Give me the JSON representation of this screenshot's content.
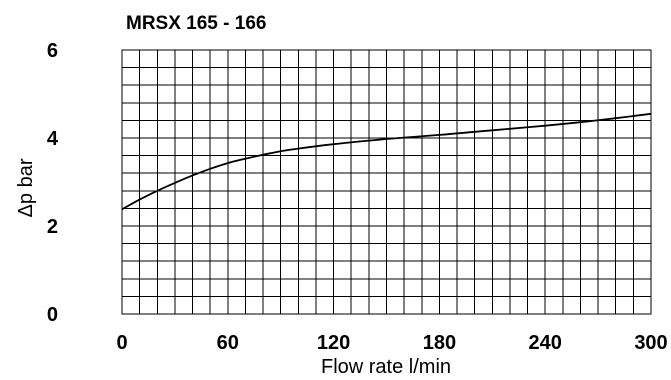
{
  "chart_data": {
    "type": "line",
    "title": "MRSX 165 - 166",
    "xlabel": "Flow rate l/min",
    "ylabel": "Δp bar",
    "xlim": [
      0,
      300
    ],
    "ylim": [
      0,
      6
    ],
    "x_ticks": [
      "0",
      "60",
      "120",
      "180",
      "240",
      "300"
    ],
    "y_ticks": [
      "0",
      "2",
      "4",
      "6"
    ],
    "grid": true,
    "series": [
      {
        "x": [
          0,
          10,
          20,
          30,
          40,
          50,
          60,
          70,
          80,
          90,
          100,
          120,
          140,
          160,
          180,
          200,
          220,
          240,
          260,
          280,
          300
        ],
        "y": [
          2.38,
          2.6,
          2.8,
          2.98,
          3.15,
          3.3,
          3.43,
          3.53,
          3.62,
          3.7,
          3.76,
          3.86,
          3.94,
          4.01,
          4.07,
          4.14,
          4.21,
          4.28,
          4.36,
          4.45,
          4.55
        ]
      }
    ]
  }
}
